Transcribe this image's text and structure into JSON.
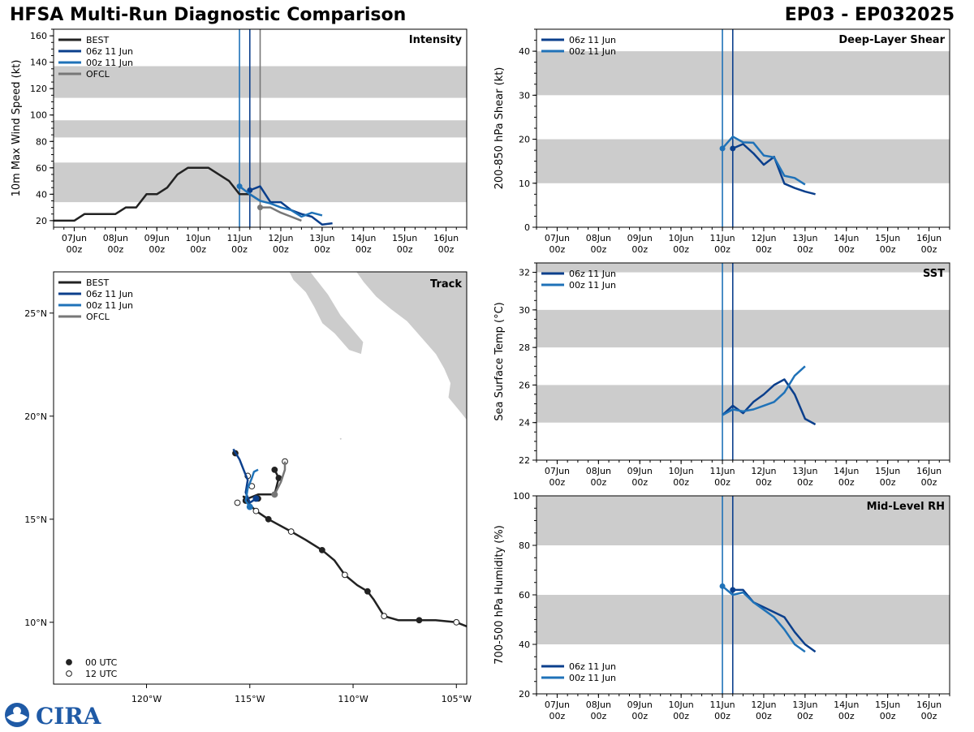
{
  "title": "HFSA Multi-Run Diagnostic Comparison",
  "storm_id": "EP03 - EP032025",
  "logo_text": "CIRA",
  "colors": {
    "best": "#222222",
    "run06": "#0b3f8c",
    "run00": "#1f72b8",
    "ofcl": "#777777",
    "band": "#cccccc",
    "land": "#cccccc"
  },
  "time_ticks": [
    [
      "07Jun",
      "00z"
    ],
    [
      "08Jun",
      "00z"
    ],
    [
      "09Jun",
      "00z"
    ],
    [
      "10Jun",
      "00z"
    ],
    [
      "11Jun",
      "00z"
    ],
    [
      "12Jun",
      "00z"
    ],
    [
      "13Jun",
      "00z"
    ],
    [
      "14Jun",
      "00z"
    ],
    [
      "15Jun",
      "00z"
    ],
    [
      "16Jun",
      "00z"
    ]
  ],
  "chart_data": [
    {
      "type": "line",
      "name": "Intensity",
      "title": "Intensity",
      "ylabel": "10m Max Wind Speed (kt)",
      "xlim": [
        6.5,
        16.5
      ],
      "ylim": [
        15,
        165
      ],
      "yticks": [
        20,
        40,
        60,
        80,
        100,
        120,
        140,
        160
      ],
      "bands": [
        [
          34,
          64
        ],
        [
          83,
          96
        ],
        [
          113,
          137
        ]
      ],
      "vlines": [
        {
          "x": 11.0,
          "color": "run00"
        },
        {
          "x": 11.25,
          "color": "run06"
        },
        {
          "x": 11.5,
          "color": "ofcl"
        }
      ],
      "legend": [
        "BEST",
        "06z 11 Jun",
        "00z 11 Jun",
        "OFCL"
      ],
      "series": [
        {
          "name": "BEST",
          "color": "best",
          "x": [
            6.5,
            6.75,
            7.0,
            7.25,
            7.5,
            7.75,
            8.0,
            8.25,
            8.5,
            8.75,
            9.0,
            9.25,
            9.5,
            9.75,
            10.0,
            10.25,
            10.5,
            10.75,
            11.0,
            11.25,
            11.5
          ],
          "y": [
            20,
            20,
            20,
            25,
            25,
            25,
            25,
            30,
            30,
            40,
            40,
            45,
            55,
            60,
            60,
            60,
            55,
            50,
            40,
            40,
            35
          ]
        },
        {
          "name": "06z 11 Jun",
          "color": "run06",
          "marker": "start",
          "x": [
            11.25,
            11.5,
            11.75,
            12.0,
            12.25,
            12.5,
            12.75,
            13.0,
            13.25
          ],
          "y": [
            43,
            46,
            34,
            34,
            28,
            25,
            23,
            17,
            18
          ]
        },
        {
          "name": "00z 11 Jun",
          "color": "run00",
          "marker": "start",
          "x": [
            11.0,
            11.25,
            11.5,
            11.75,
            12.0,
            12.25,
            12.5,
            12.75,
            13.0
          ],
          "y": [
            46,
            40,
            35,
            33,
            30,
            28,
            23,
            26,
            24
          ]
        },
        {
          "name": "OFCL",
          "color": "ofcl",
          "marker": "start",
          "x": [
            11.5,
            11.75,
            12.0,
            12.25,
            12.5
          ],
          "y": [
            30,
            30,
            26,
            23,
            20
          ]
        }
      ]
    },
    {
      "type": "line",
      "name": "Deep-Layer Shear",
      "title": "Deep-Layer Shear",
      "ylabel": "200-850 hPa Shear (kt)",
      "xlim": [
        6.5,
        16.5
      ],
      "ylim": [
        0,
        45
      ],
      "yticks": [
        0,
        10,
        20,
        30,
        40
      ],
      "bands": [
        [
          10,
          20
        ],
        [
          30,
          40
        ]
      ],
      "vlines": [
        {
          "x": 11.0,
          "color": "run00"
        },
        {
          "x": 11.25,
          "color": "run06"
        }
      ],
      "legend": [
        "06z 11 Jun",
        "00z 11 Jun"
      ],
      "series": [
        {
          "name": "06z 11 Jun",
          "color": "run06",
          "marker": "start",
          "x": [
            11.25,
            11.5,
            11.75,
            12.0,
            12.25,
            12.5,
            12.75,
            13.0,
            13.25
          ],
          "y": [
            17.9,
            18.9,
            16.8,
            14.2,
            16.0,
            9.9,
            8.9,
            8.1,
            7.5
          ]
        },
        {
          "name": "00z 11 Jun",
          "color": "run00",
          "marker": "start",
          "x": [
            11.0,
            11.25,
            11.5,
            11.75,
            12.0,
            12.25,
            12.5,
            12.75,
            13.0
          ],
          "y": [
            17.9,
            20.6,
            19.3,
            19.2,
            16.3,
            15.9,
            11.7,
            11.2,
            9.7
          ]
        }
      ]
    },
    {
      "type": "line",
      "name": "SST",
      "title": "SST",
      "ylabel": "Sea Surface Temp (°C)",
      "xlim": [
        6.5,
        16.5
      ],
      "ylim": [
        22,
        32.5
      ],
      "yticks": [
        22,
        24,
        26,
        28,
        30,
        32
      ],
      "bands": [
        [
          24,
          26
        ],
        [
          28,
          30
        ],
        [
          32,
          33
        ]
      ],
      "vlines": [
        {
          "x": 11.0,
          "color": "run00"
        },
        {
          "x": 11.25,
          "color": "run06"
        }
      ],
      "legend": [
        "06z 11 Jun",
        "00z 11 Jun"
      ],
      "series": [
        {
          "name": "06z 11 Jun",
          "color": "run06",
          "x": [
            11.0,
            11.25,
            11.5,
            11.75,
            12.0,
            12.25,
            12.5,
            12.75,
            13.0,
            13.25
          ],
          "y": [
            24.4,
            24.9,
            24.5,
            25.1,
            25.5,
            26.0,
            26.3,
            25.5,
            24.2,
            23.9
          ]
        },
        {
          "name": "00z 11 Jun",
          "color": "run00",
          "x": [
            11.0,
            11.25,
            11.5,
            11.75,
            12.0,
            12.25,
            12.5,
            12.75,
            13.0
          ],
          "y": [
            24.4,
            24.7,
            24.6,
            24.7,
            24.9,
            25.1,
            25.6,
            26.5,
            27.0
          ]
        }
      ]
    },
    {
      "type": "line",
      "name": "Mid-Level RH",
      "title": "Mid-Level RH",
      "ylabel": "700-500 hPa Humidity (%)",
      "xlim": [
        6.5,
        16.5
      ],
      "ylim": [
        20,
        100
      ],
      "yticks": [
        20,
        40,
        60,
        80,
        100
      ],
      "bands": [
        [
          40,
          60
        ],
        [
          80,
          100
        ]
      ],
      "vlines": [
        {
          "x": 11.0,
          "color": "run00"
        },
        {
          "x": 11.25,
          "color": "run06"
        }
      ],
      "legend": [
        "06z 11 Jun",
        "00z 11 Jun"
      ],
      "series": [
        {
          "name": "06z 11 Jun",
          "color": "run06",
          "marker": "start",
          "x": [
            11.25,
            11.5,
            11.75,
            12.0,
            12.25,
            12.5,
            12.75,
            13.0,
            13.25
          ],
          "y": [
            62,
            62,
            57,
            55,
            53,
            51,
            45,
            40,
            37
          ]
        },
        {
          "name": "00z 11 Jun",
          "color": "run00",
          "marker": "start",
          "x": [
            11.0,
            11.25,
            11.5,
            11.75,
            12.0,
            12.25,
            12.5,
            12.75,
            13.0
          ],
          "y": [
            63.5,
            60,
            61,
            57,
            54,
            51,
            46,
            40,
            37
          ]
        }
      ]
    },
    {
      "type": "scatter",
      "name": "Track",
      "title": "Track",
      "xlim": [
        -124.5,
        -104.5
      ],
      "ylim": [
        7,
        27
      ],
      "xticks": [
        -120,
        -115,
        -110,
        -105
      ],
      "xtick_labels": [
        "120°W",
        "115°W",
        "110°W",
        "105°W"
      ],
      "yticks": [
        10,
        15,
        20,
        25
      ],
      "ytick_labels": [
        "10°N",
        "15°N",
        "20°N",
        "25°N"
      ],
      "legend": [
        "BEST",
        "06z 11 Jun",
        "00z 11 Jun",
        "OFCL"
      ],
      "marker_legend": [
        "00 UTC",
        "12 UTC"
      ],
      "series": [
        {
          "name": "BEST",
          "color": "best",
          "lon": [
            -104.5,
            -105.0,
            -106.0,
            -106.8,
            -107.8,
            -108.5,
            -109.0,
            -109.3,
            -109.8,
            -110.4,
            -110.9,
            -111.5,
            -112.3,
            -113.0,
            -114.1,
            -114.7,
            -115.0,
            -115.2,
            -115.3,
            -115.1,
            -114.6,
            -113.8,
            -113.6,
            -113.8
          ],
          "lat": [
            9.8,
            10.0,
            10.1,
            10.1,
            10.1,
            10.3,
            11.1,
            11.5,
            11.8,
            12.3,
            13.0,
            13.5,
            14.0,
            14.4,
            15.0,
            15.4,
            15.7,
            15.9,
            16.1,
            16.0,
            16.2,
            16.2,
            17.0,
            17.4
          ],
          "points": [
            {
              "lon": -105.0,
              "lat": 10.0,
              "fill": "open"
            },
            {
              "lon": -106.8,
              "lat": 10.1,
              "fill": "filled"
            },
            {
              "lon": -108.5,
              "lat": 10.3,
              "fill": "open"
            },
            {
              "lon": -109.3,
              "lat": 11.5,
              "fill": "filled"
            },
            {
              "lon": -110.4,
              "lat": 12.3,
              "fill": "open"
            },
            {
              "lon": -111.5,
              "lat": 13.5,
              "fill": "filled"
            },
            {
              "lon": -113.0,
              "lat": 14.4,
              "fill": "open"
            },
            {
              "lon": -114.1,
              "lat": 15.0,
              "fill": "filled"
            },
            {
              "lon": -114.7,
              "lat": 15.4,
              "fill": "open"
            },
            {
              "lon": -115.2,
              "lat": 15.9,
              "fill": "filled"
            },
            {
              "lon": -115.6,
              "lat": 15.8,
              "fill": "open"
            },
            {
              "lon": -114.6,
              "lat": 16.0,
              "fill": "filled"
            },
            {
              "lon": -113.6,
              "lat": 17.0,
              "fill": "filled"
            },
            {
              "lon": -113.3,
              "lat": 17.8,
              "fill": "open"
            },
            {
              "lon": -113.8,
              "lat": 17.4,
              "fill": "filled"
            },
            {
              "lon": -115.1,
              "lat": 17.1,
              "fill": "open"
            },
            {
              "lon": -115.7,
              "lat": 18.2,
              "fill": "filled"
            },
            {
              "lon": -114.9,
              "lat": 16.6,
              "fill": "open"
            }
          ]
        },
        {
          "name": "06z 11 Jun",
          "color": "run06",
          "lon": [
            -114.7,
            -115.0,
            -115.2,
            -115.1,
            -115.3,
            -115.5,
            -115.8
          ],
          "lat": [
            16.0,
            15.8,
            16.3,
            16.9,
            17.4,
            17.9,
            18.4
          ]
        },
        {
          "name": "00z 11 Jun",
          "color": "run00",
          "lon": [
            -115.0,
            -115.2,
            -115.1,
            -114.9,
            -114.8,
            -114.6
          ],
          "lat": [
            15.6,
            15.9,
            16.5,
            17.0,
            17.3,
            17.4
          ]
        },
        {
          "name": "OFCL",
          "color": "ofcl",
          "lon": [
            -113.8,
            -113.5,
            -113.3,
            -113.3
          ],
          "lat": [
            16.2,
            16.8,
            17.4,
            17.8
          ]
        }
      ]
    }
  ]
}
